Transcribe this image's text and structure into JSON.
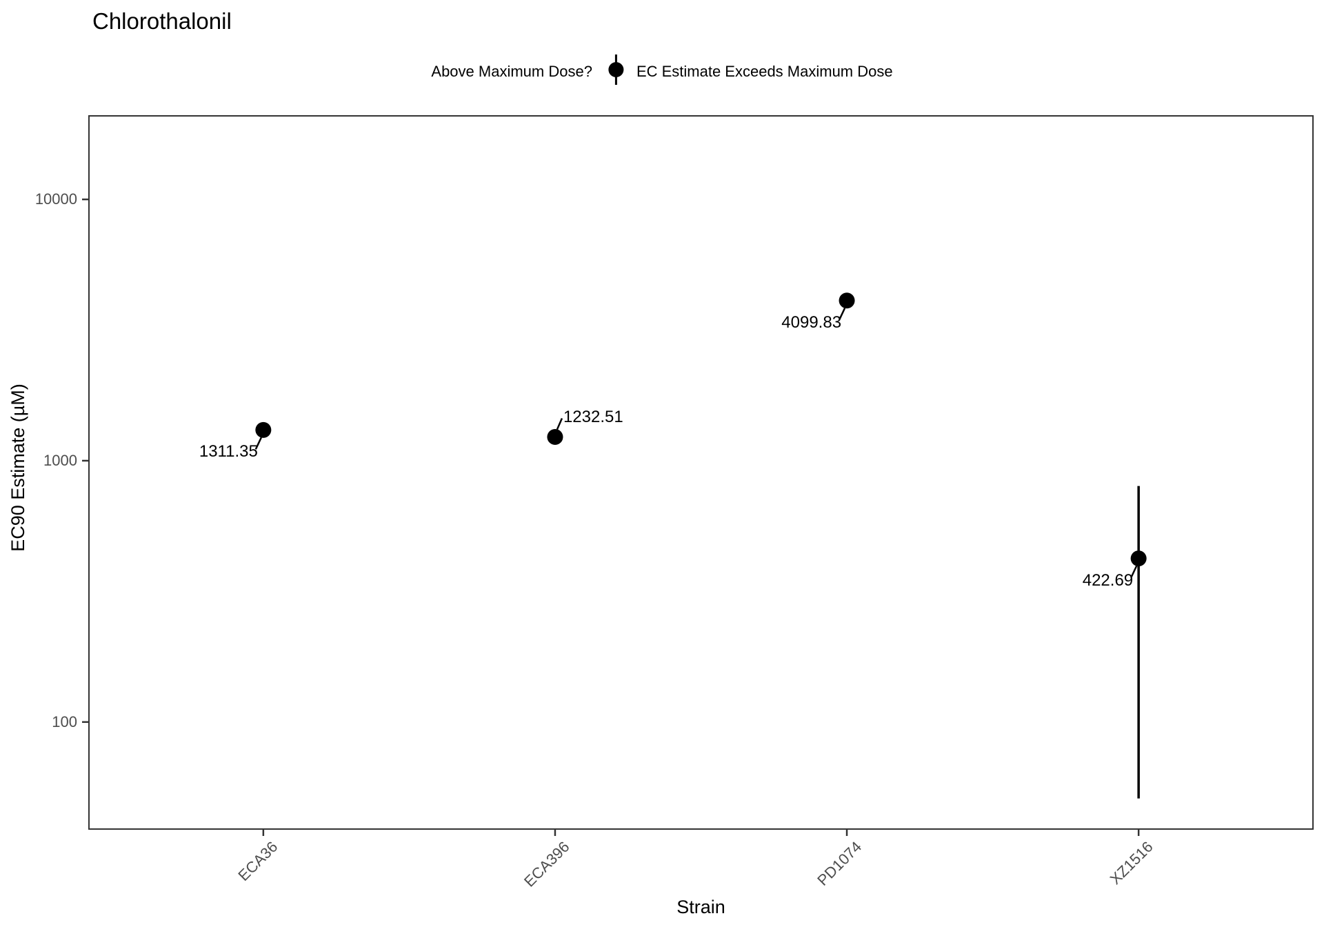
{
  "page": {
    "background": "#ffffff"
  },
  "title": "Chlorothalonil",
  "legend": {
    "title": "Above Maximum Dose?",
    "item": {
      "label": "EC Estimate Exceeds Maximum Dose",
      "symbol": "filled-pointrange-icon",
      "color": "#000000"
    }
  },
  "colors": {
    "point": "#000000",
    "axis_text": "#4d4d4d",
    "axis_line": "#333333",
    "label_text": "#000000",
    "panel_background": "#ffffff"
  },
  "chart_data": {
    "type": "scatter",
    "title": "Chlorothalonil",
    "xlabel": "Strain",
    "ylabel": "EC90 Estimate (µM)",
    "yscale": "log10",
    "ylim": [
      38.7,
      21000
    ],
    "yticks": [
      100,
      1000,
      10000
    ],
    "grid": false,
    "legend_position": "top",
    "categories": [
      "ECA36",
      "ECA396",
      "PD1074",
      "XZ1516"
    ],
    "series": [
      {
        "name": "EC Estimate Exceeds Maximum Dose",
        "color": "#000000",
        "points": [
          {
            "category": "ECA36",
            "value": 1311.35,
            "label": "1311.35",
            "label_placement": "below-left"
          },
          {
            "category": "ECA396",
            "value": 1232.51,
            "label": "1232.51",
            "label_placement": "above-right"
          },
          {
            "category": "PD1074",
            "value": 4099.83,
            "label": "4099.83",
            "label_placement": "below-left"
          },
          {
            "category": "XZ1516",
            "value": 422.69,
            "label": "422.69",
            "label_placement": "below-left",
            "ci_low": 51,
            "ci_high": 800
          }
        ]
      }
    ]
  }
}
